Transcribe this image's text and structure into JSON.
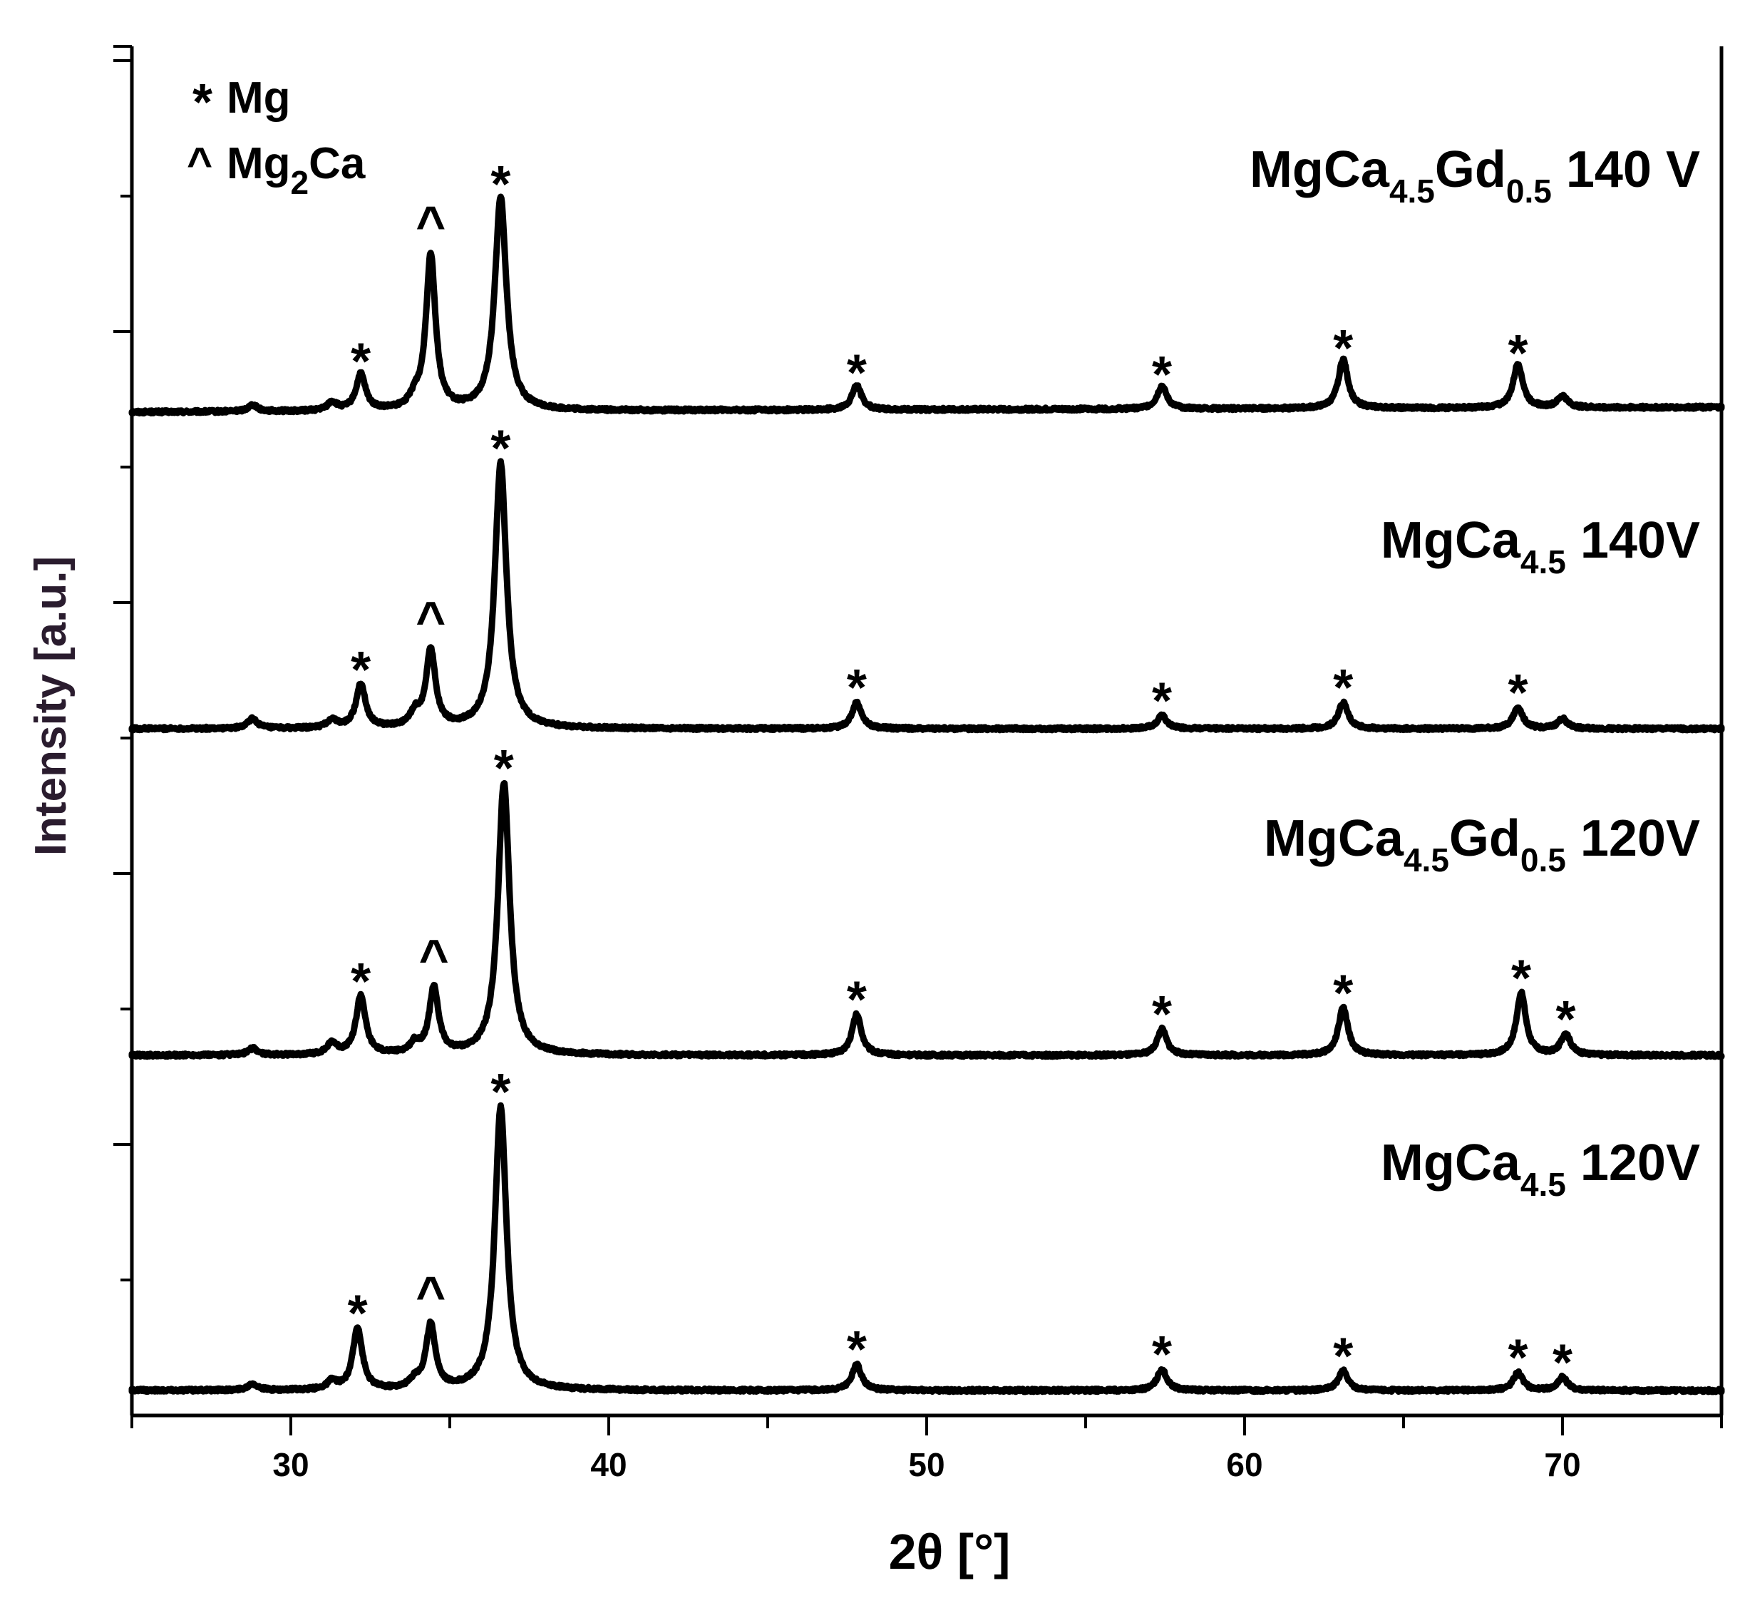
{
  "chart_data": {
    "type": "line",
    "xlabel": "2θ [°]",
    "ylabel": "Intensity [a.u.]",
    "xlim": [
      25,
      75
    ],
    "x_ticks": [
      30,
      40,
      50,
      60,
      70
    ],
    "y_ticks_shown_without_labels": true,
    "grid": false,
    "legend": {
      "placement": "top-left",
      "entries": [
        {
          "symbol": "*",
          "label": "Mg"
        },
        {
          "symbol": "^",
          "label_main": "Mg",
          "label_sub": "2",
          "label_tail": "Ca"
        }
      ]
    },
    "line_color": "#000000",
    "series": [
      {
        "name": "MgCa4.5Gd0.5 140 V",
        "label_parts": [
          [
            "MgCa",
            ""
          ],
          [
            "4.5",
            "sub"
          ],
          [
            "Gd",
            ""
          ],
          [
            "0.5",
            "sub"
          ],
          [
            " 140 V",
            ""
          ]
        ],
        "baseline": 0,
        "peaks": [
          {
            "x": 28.8,
            "height": 0.04
          },
          {
            "x": 31.3,
            "height": 0.05
          },
          {
            "x": 32.2,
            "height": 0.22,
            "marker": "*"
          },
          {
            "x": 33.9,
            "height": 0.06
          },
          {
            "x": 34.4,
            "height": 0.95,
            "marker": "^"
          },
          {
            "x": 36.6,
            "height": 1.3,
            "marker": "*"
          },
          {
            "x": 47.8,
            "height": 0.15,
            "marker": "*"
          },
          {
            "x": 57.4,
            "height": 0.14,
            "marker": "*"
          },
          {
            "x": 63.1,
            "height": 0.3,
            "marker": "*"
          },
          {
            "x": 68.6,
            "height": 0.27,
            "marker": "*"
          },
          {
            "x": 70.0,
            "height": 0.07
          }
        ]
      },
      {
        "name": "MgCa4.5 140V",
        "label_parts": [
          [
            "MgCa",
            ""
          ],
          [
            "4.5",
            "sub"
          ],
          [
            " 140V",
            ""
          ]
        ],
        "baseline": 0,
        "peaks": [
          {
            "x": 28.8,
            "height": 0.06
          },
          {
            "x": 31.3,
            "height": 0.05
          },
          {
            "x": 32.2,
            "height": 0.27,
            "marker": "*"
          },
          {
            "x": 33.9,
            "height": 0.08
          },
          {
            "x": 34.4,
            "height": 0.47,
            "marker": "^"
          },
          {
            "x": 36.6,
            "height": 1.62,
            "marker": "*"
          },
          {
            "x": 47.8,
            "height": 0.16,
            "marker": "*"
          },
          {
            "x": 57.4,
            "height": 0.08,
            "marker": "*"
          },
          {
            "x": 63.1,
            "height": 0.16,
            "marker": "*"
          },
          {
            "x": 68.6,
            "height": 0.13,
            "marker": "*"
          },
          {
            "x": 70.0,
            "height": 0.06
          }
        ]
      },
      {
        "name": "MgCa4.5Gd0.5 120V",
        "label_parts": [
          [
            "MgCa",
            ""
          ],
          [
            "4.5",
            "sub"
          ],
          [
            "Gd",
            ""
          ],
          [
            "0.5",
            "sub"
          ],
          [
            " 120V",
            ""
          ]
        ],
        "baseline": 0,
        "peaks": [
          {
            "x": 28.8,
            "height": 0.04
          },
          {
            "x": 31.3,
            "height": 0.07
          },
          {
            "x": 32.2,
            "height": 0.36,
            "marker": "*"
          },
          {
            "x": 33.9,
            "height": 0.06
          },
          {
            "x": 34.5,
            "height": 0.4,
            "marker": "^"
          },
          {
            "x": 36.7,
            "height": 1.66,
            "marker": "*"
          },
          {
            "x": 47.8,
            "height": 0.25,
            "marker": "*"
          },
          {
            "x": 57.4,
            "height": 0.16,
            "marker": "*"
          },
          {
            "x": 63.1,
            "height": 0.29,
            "marker": "*"
          },
          {
            "x": 68.7,
            "height": 0.38,
            "marker": "*"
          },
          {
            "x": 70.1,
            "height": 0.13,
            "marker": "*"
          }
        ]
      },
      {
        "name": "MgCa4.5 120V",
        "label_parts": [
          [
            "MgCa",
            ""
          ],
          [
            "4.5",
            "sub"
          ],
          [
            " 120V",
            ""
          ]
        ],
        "baseline": 0,
        "peaks": [
          {
            "x": 28.8,
            "height": 0.04
          },
          {
            "x": 31.3,
            "height": 0.05
          },
          {
            "x": 32.1,
            "height": 0.38,
            "marker": "*"
          },
          {
            "x": 33.9,
            "height": 0.05
          },
          {
            "x": 34.4,
            "height": 0.39,
            "marker": "^"
          },
          {
            "x": 36.6,
            "height": 1.73,
            "marker": "*"
          },
          {
            "x": 47.8,
            "height": 0.16,
            "marker": "*"
          },
          {
            "x": 57.4,
            "height": 0.13,
            "marker": "*"
          },
          {
            "x": 63.1,
            "height": 0.12,
            "marker": "*"
          },
          {
            "x": 68.6,
            "height": 0.11,
            "marker": "*"
          },
          {
            "x": 70.0,
            "height": 0.08,
            "marker": "*"
          }
        ]
      }
    ]
  }
}
